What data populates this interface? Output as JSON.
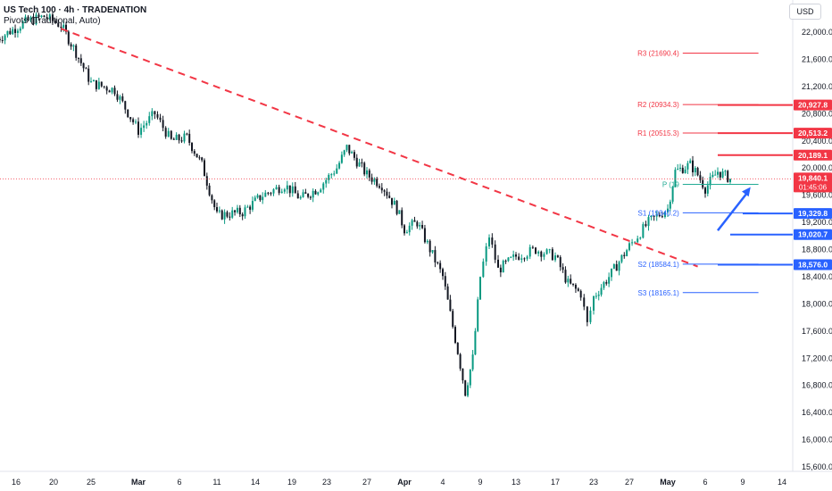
{
  "header": {
    "title": "US Tech 100 · 4h · TRADENATION",
    "indicator": "Pivots (Traditional, Auto)"
  },
  "currency_button": "USD",
  "colors": {
    "up": "#089981",
    "down": "#131722",
    "resistance": "#f23645",
    "support": "#2962ff",
    "pivot": "#22ab94",
    "trendline": "#f23645"
  },
  "chart_data": {
    "type": "candlestick",
    "ylim": [
      15600,
      22400
    ],
    "y_ticks": [
      "22,000.0",
      "21,600.0",
      "21,200.0",
      "20,800.0",
      "20,400.0",
      "20,000.0",
      "19,600.0",
      "19,200.0",
      "18,800.0",
      "18,400.0",
      "18,000.0",
      "17,600.0",
      "17,200.0",
      "16,800.0",
      "16,400.0",
      "16,000.0",
      "15,600.0"
    ],
    "y_tick_values": [
      22000,
      21600,
      21200,
      20800,
      20400,
      20000,
      19600,
      19200,
      18800,
      18400,
      18000,
      17600,
      17200,
      16800,
      16400,
      16000,
      15600
    ],
    "x_ticks": [
      {
        "label": "16",
        "date": "2025-02-16"
      },
      {
        "label": "20",
        "date": "2025-02-20"
      },
      {
        "label": "25",
        "date": "2025-02-25"
      },
      {
        "label": "Mar",
        "date": "2025-03-01"
      },
      {
        "label": "6",
        "date": "2025-03-06"
      },
      {
        "label": "11",
        "date": "2025-03-11"
      },
      {
        "label": "14",
        "date": "2025-03-14"
      },
      {
        "label": "19",
        "date": "2025-03-19"
      },
      {
        "label": "23",
        "date": "2025-03-23"
      },
      {
        "label": "27",
        "date": "2025-03-27"
      },
      {
        "label": "Apr",
        "date": "2025-04-01"
      },
      {
        "label": "4",
        "date": "2025-04-04"
      },
      {
        "label": "9",
        "date": "2025-04-09"
      },
      {
        "label": "13",
        "date": "2025-04-13"
      },
      {
        "label": "17",
        "date": "2025-04-17"
      },
      {
        "label": "23",
        "date": "2025-04-23"
      },
      {
        "label": "27",
        "date": "2025-04-27"
      },
      {
        "label": "May",
        "date": "2025-05-01"
      },
      {
        "label": "6",
        "date": "2025-05-06"
      },
      {
        "label": "9",
        "date": "2025-05-09"
      },
      {
        "label": "14",
        "date": "2025-05-14"
      }
    ],
    "price_path": [
      {
        "date": "2025-02-14",
        "close": 21900
      },
      {
        "date": "2025-02-17",
        "close": 22150
      },
      {
        "date": "2025-02-19",
        "close": 22230
      },
      {
        "date": "2025-02-21",
        "close": 22100
      },
      {
        "date": "2025-02-23",
        "close": 21700
      },
      {
        "date": "2025-02-25",
        "close": 21250
      },
      {
        "date": "2025-02-27",
        "close": 21150
      },
      {
        "date": "2025-03-01",
        "close": 20550
      },
      {
        "date": "2025-03-03",
        "close": 20800
      },
      {
        "date": "2025-03-05",
        "close": 20400
      },
      {
        "date": "2025-03-07",
        "close": 20450
      },
      {
        "date": "2025-03-09",
        "close": 20050
      },
      {
        "date": "2025-03-11",
        "close": 19300
      },
      {
        "date": "2025-03-13",
        "close": 19350
      },
      {
        "date": "2025-03-15",
        "close": 19600
      },
      {
        "date": "2025-03-18",
        "close": 19750
      },
      {
        "date": "2025-03-20",
        "close": 19550
      },
      {
        "date": "2025-03-22",
        "close": 19700
      },
      {
        "date": "2025-03-24",
        "close": 20000
      },
      {
        "date": "2025-03-25",
        "close": 20300
      },
      {
        "date": "2025-03-27",
        "close": 19900
      },
      {
        "date": "2025-03-29",
        "close": 19750
      },
      {
        "date": "2025-03-31",
        "close": 19400
      },
      {
        "date": "2025-04-01",
        "close": 19100
      },
      {
        "date": "2025-04-02",
        "close": 19200
      },
      {
        "date": "2025-04-03",
        "close": 18800
      },
      {
        "date": "2025-04-04",
        "close": 18400
      },
      {
        "date": "2025-04-06",
        "close": 17300
      },
      {
        "date": "2025-04-07",
        "close": 16700
      },
      {
        "date": "2025-04-08",
        "close": 17200
      },
      {
        "date": "2025-04-09",
        "close": 18400
      },
      {
        "date": "2025-04-10",
        "close": 19000
      },
      {
        "date": "2025-04-11",
        "close": 18500
      },
      {
        "date": "2025-04-13",
        "close": 18700
      },
      {
        "date": "2025-04-15",
        "close": 18800
      },
      {
        "date": "2025-04-17",
        "close": 18700
      },
      {
        "date": "2025-04-19",
        "close": 18300
      },
      {
        "date": "2025-04-21",
        "close": 18150
      },
      {
        "date": "2025-04-22",
        "close": 17700
      },
      {
        "date": "2025-04-23",
        "close": 18100
      },
      {
        "date": "2025-04-25",
        "close": 18450
      },
      {
        "date": "2025-04-27",
        "close": 18850
      },
      {
        "date": "2025-04-29",
        "close": 19200
      },
      {
        "date": "2025-05-01",
        "close": 19400
      },
      {
        "date": "2025-05-02",
        "close": 19950
      },
      {
        "date": "2025-05-04",
        "close": 20050
      },
      {
        "date": "2025-05-05",
        "close": 19900
      },
      {
        "date": "2025-05-06",
        "close": 19700
      },
      {
        "date": "2025-05-07",
        "close": 19950
      },
      {
        "date": "2025-05-08",
        "close": 19840
      }
    ],
    "current_price": {
      "value": 19840.1,
      "label": "19,840.1",
      "countdown": "01:45:06"
    },
    "pivots": [
      {
        "name": "R3",
        "label": "R3 (21690.4)",
        "value": 21690.4,
        "color": "#f23645"
      },
      {
        "name": "R2",
        "label": "R2 (20934.3)",
        "value": 20934.3,
        "color": "#f23645"
      },
      {
        "name": "R1",
        "label": "R1 (20515.3)",
        "value": 20515.3,
        "color": "#f23645"
      },
      {
        "name": "P",
        "label": "P (19",
        "value": 19759,
        "color": "#22ab94"
      },
      {
        "name": "S1",
        "label": "S1 (19340.2)",
        "value": 19340.2,
        "color": "#2962ff"
      },
      {
        "name": "S2",
        "label": "S2 (18584.1)",
        "value": 18584.1,
        "color": "#2962ff"
      },
      {
        "name": "S3",
        "label": "S3 (18165.1)",
        "value": 18165.1,
        "color": "#2962ff"
      }
    ],
    "levels": [
      {
        "value": 20927.8,
        "label": "20,927.8",
        "color": "#f23645"
      },
      {
        "value": 20513.2,
        "label": "20,513.2",
        "color": "#f23645"
      },
      {
        "value": 20189.1,
        "label": "20,189.1",
        "color": "#f23645"
      },
      {
        "value": 19329.8,
        "label": "19,329.8",
        "color": "#2962ff"
      },
      {
        "value": 19020.7,
        "label": "19,020.7",
        "color": "#2962ff"
      },
      {
        "value": 18576.0,
        "label": "18,576.0",
        "color": "#2962ff"
      }
    ],
    "trendline": {
      "from": {
        "date": "2025-02-21",
        "value": 22050
      },
      "to": {
        "date": "2025-05-05",
        "value": 18550
      },
      "style": "dashed"
    },
    "arrow": {
      "from": {
        "date": "2025-05-07",
        "value": 19080
      },
      "to": {
        "date": "2025-05-10",
        "value": 19720
      }
    }
  }
}
